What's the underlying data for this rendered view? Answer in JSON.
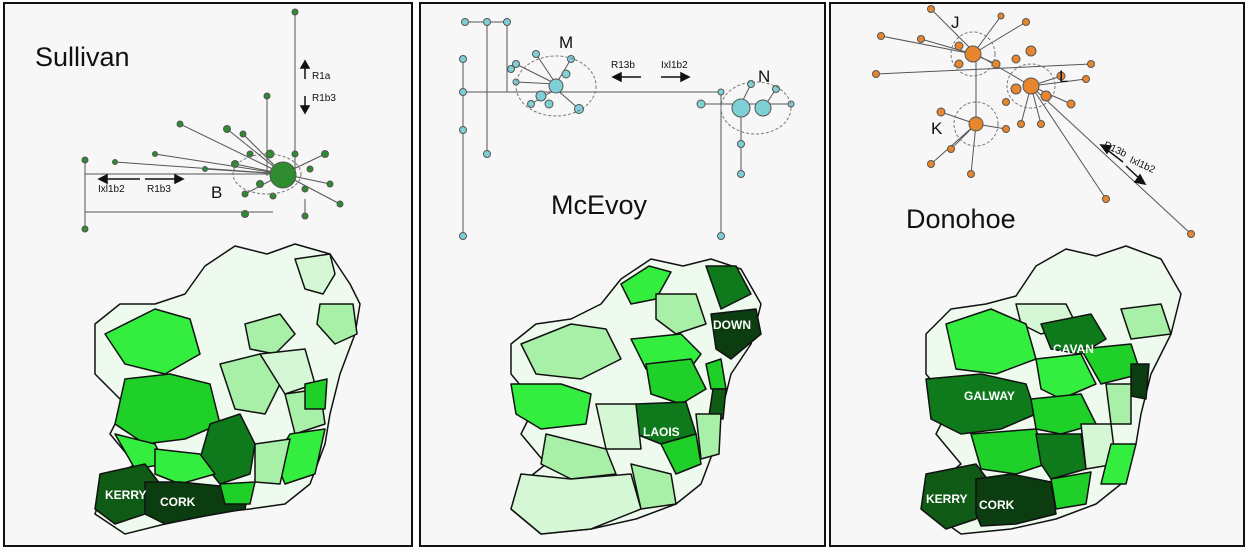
{
  "panels": [
    {
      "title": "Sullivan",
      "network": {
        "color": "#2e8b2e",
        "cluster_labels": [
          "B"
        ],
        "arrows": {
          "up": "R1a",
          "down": "R1b3",
          "left": "Ixl1b2",
          "right": "R1b3"
        }
      },
      "map": {
        "counties": [
          "KERRY",
          "CORK"
        ]
      }
    },
    {
      "title": "McEvoy",
      "network": {
        "color": "#7fd0d6",
        "cluster_labels": [
          "M",
          "N"
        ],
        "arrows": {
          "left": "R13b",
          "right": "Ixl1b2"
        }
      },
      "map": {
        "counties": [
          "DOWN",
          "LAOIS"
        ]
      }
    },
    {
      "title": "Donohoe",
      "network": {
        "color": "#e8862e",
        "cluster_labels": [
          "J",
          "K",
          "L"
        ],
        "arrows": {
          "upleft": "R13b",
          "downright": "Ixl1b2"
        }
      },
      "map": {
        "counties": [
          "GALWAY",
          "CAVAN",
          "KERRY",
          "CORK"
        ]
      }
    }
  ],
  "colors": {
    "darkest": "#0b3d10",
    "dark": "#0f7a1c",
    "medium": "#1fd028",
    "bright": "#33ee3e",
    "light": "#a8f0a8",
    "pale": "#d6f7d6",
    "palest": "#eefaee"
  }
}
